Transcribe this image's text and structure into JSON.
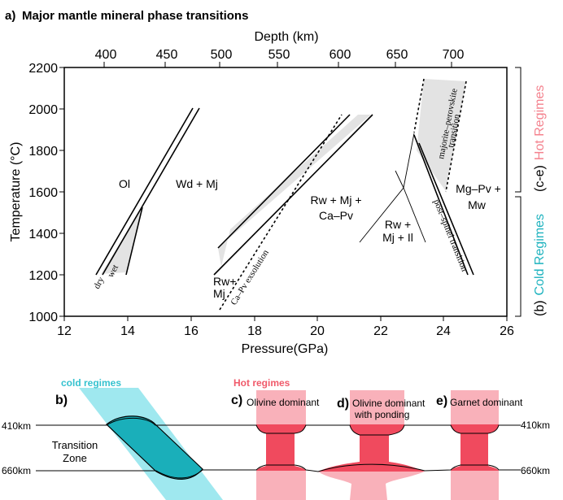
{
  "panel_a": {
    "label": "a)",
    "title": "Major mantle mineral phase transitions",
    "top_axis_label": "Depth (km)",
    "top_ticks": [
      "400",
      "450",
      "500",
      "550",
      "600",
      "650",
      "700"
    ],
    "left_axis_label": "Temperature (°C)",
    "left_ticks": [
      "1000",
      "1200",
      "1400",
      "1600",
      "1800",
      "2000",
      "2200"
    ],
    "bottom_axis_label": "Pressure(GPa)",
    "bottom_ticks": [
      "12",
      "14",
      "16",
      "18",
      "20",
      "22",
      "24",
      "26"
    ],
    "labels": {
      "ol": "Ol",
      "wd_mj": "Wd + Mj",
      "rw_mj_capv_1": "Rw + Mj +",
      "rw_mj_capv_2": "Ca–Pv",
      "rw_mj_ii_1": "Rw +",
      "rw_mj_ii_2": "Mj + Il",
      "mgpv_mw_1": "Mg–Pv +",
      "mgpv_mw_2": "Mw",
      "rw_mj_1": "Rw+",
      "rw_mj_2": "Mj",
      "dry": "dry",
      "wet": "wet",
      "capv_exsolution": "Ca–Pv exsolution",
      "majorite_perovskite_1": "majorite–perovskite",
      "majorite_perovskite_2": "transition",
      "post_spinel": "post–spinel transition"
    },
    "bracket_hot": {
      "label": "(c-e)",
      "regime": "Hot Regimes",
      "color": "#f4828e"
    },
    "bracket_cold": {
      "label": "(b)",
      "regime": "Cold Regimes",
      "color": "#1fb3bf"
    }
  },
  "panel_b": {
    "label": "b)",
    "title": "cold regimes",
    "title_color": "#35c2cf",
    "zone_label_1": "Transition",
    "zone_label_2": "Zone",
    "depth_410": "410km",
    "depth_660": "660km"
  },
  "panel_hot": {
    "title": "Hot regimes",
    "title_color": "#f05a6a",
    "c_label": "c)",
    "c_text": "Olivine dominant",
    "d_label": "d)",
    "d_text_1": "Olivine dominant",
    "d_text_2": "with ponding",
    "e_label": "e)",
    "e_text": "Garnet dominant",
    "depth_410": "410km",
    "depth_660": "660km"
  },
  "colors": {
    "teal_dark": "#1aafba",
    "teal_light": "#9fe8ef",
    "red_dark": "#f04a5e",
    "pink_light": "#f9b1ba",
    "shade": "#e3e3e3"
  }
}
